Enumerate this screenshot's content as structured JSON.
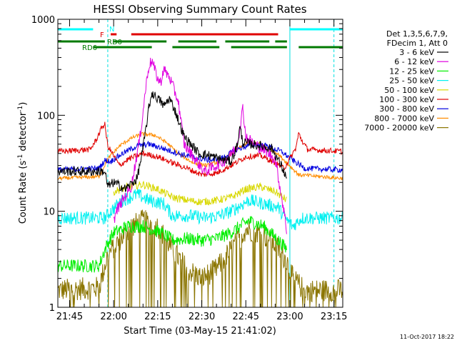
{
  "chart_data": {
    "type": "line",
    "title": "HESSI Observing Summary Count Rates",
    "xlabel": "Start Time (03-May-15 21:41:02)",
    "ylabel_main": "Count Rate (s",
    "ylabel_sup1": "-1",
    "ylabel_mid": " detector",
    "ylabel_sup2": "-1",
    "ylabel_end": ")",
    "y_scale": "log",
    "ylim": [
      1,
      1000
    ],
    "xlim": [
      "21:41",
      "23:18"
    ],
    "x_ticks": [
      "21:45",
      "22:00",
      "22:15",
      "22:30",
      "22:45",
      "23:00",
      "23:15"
    ],
    "y_ticks": [
      "1",
      "10",
      "100",
      "1000"
    ],
    "info_lines": [
      "Det 1,3,5,6,7,9,",
      "FDecim 1, Att 0"
    ],
    "footer_date": "11-Oct-2017 18:22",
    "legend_position": "right",
    "legend": [
      {
        "label": "3 - 6 keV",
        "color": "#000000"
      },
      {
        "label": "6 - 12 keV",
        "color": "#e000e0"
      },
      {
        "label": "12 - 25 keV",
        "color": "#00ee00"
      },
      {
        "label": "25 - 50 keV",
        "color": "#00f0f0"
      },
      {
        "label": "50 - 100 keV",
        "color": "#d8d800"
      },
      {
        "label": "100 - 300 keV",
        "color": "#e00000"
      },
      {
        "label": "300 - 800 keV",
        "color": "#0000e0"
      },
      {
        "label": "800 - 7000 keV",
        "color": "#ff8c00"
      },
      {
        "label": "7000 - 20000 keV",
        "color": "#8b7500"
      }
    ],
    "flags": [
      {
        "label": "N",
        "color": "#00ffff",
        "segments": [
          [
            "21:41",
            "21:53"
          ],
          [
            "23:00",
            "23:18"
          ]
        ]
      },
      {
        "label": "F",
        "color": "#e00000",
        "segments": [
          [
            "21:59",
            "22:01"
          ],
          [
            "22:06",
            "22:56"
          ]
        ]
      },
      {
        "label": "RD0",
        "color": "#007a00",
        "segments": [
          [
            "21:41",
            "21:57"
          ],
          [
            "22:00",
            "22:18"
          ],
          [
            "22:22",
            "22:35"
          ],
          [
            "22:38",
            "22:53"
          ],
          [
            "22:55",
            "22:59"
          ]
        ]
      },
      {
        "label": "RD6",
        "color": "#007a00",
        "segments": [
          [
            "21:53",
            "22:13"
          ],
          [
            "22:20",
            "22:36"
          ],
          [
            "22:40",
            "22:59"
          ],
          [
            "23:03",
            "23:18"
          ]
        ]
      }
    ],
    "vertical_lines": [
      {
        "time": "21:41",
        "style": "solid",
        "color": "#00e0e0"
      },
      {
        "time": "21:58",
        "style": "dashed",
        "color": "#00e0e0"
      },
      {
        "time": "23:00",
        "style": "solid",
        "color": "#00e0e0"
      },
      {
        "time": "23:15",
        "style": "dashed",
        "color": "#00e0e0"
      }
    ],
    "series": [
      {
        "name": "3 - 6 keV",
        "color": "#000000",
        "noise": 0.05,
        "points": [
          [
            "21:41",
            26
          ],
          [
            "21:57",
            26
          ],
          [
            "21:58",
            18
          ],
          [
            "22:00",
            20
          ],
          [
            "22:04",
            17
          ],
          [
            "22:08",
            22
          ],
          [
            "22:10",
            45
          ],
          [
            "22:12",
            120
          ],
          [
            "22:13",
            170
          ],
          [
            "22:16",
            140
          ],
          [
            "22:17",
            125
          ],
          [
            "22:19",
            150
          ],
          [
            "22:21",
            110
          ],
          [
            "22:24",
            60
          ],
          [
            "22:29",
            40
          ],
          [
            "22:33",
            38
          ],
          [
            "22:36",
            35
          ],
          [
            "22:40",
            33
          ],
          [
            "22:42",
            48
          ],
          [
            "22:43",
            75
          ],
          [
            "22:44",
            52
          ],
          [
            "22:47",
            50
          ],
          [
            "22:50",
            48
          ],
          [
            "22:54",
            45
          ],
          [
            "22:57",
            30
          ],
          [
            "22:59",
            22
          ],
          [
            "23:00",
            null
          ]
        ]
      },
      {
        "name": "6 - 12 keV",
        "color": "#e000e0",
        "noise": 0.06,
        "points": [
          [
            "21:41",
            null
          ],
          [
            "21:59",
            null
          ],
          [
            "22:00",
            8
          ],
          [
            "22:01",
            10
          ],
          [
            "22:03",
            13
          ],
          [
            "22:06",
            18
          ],
          [
            "22:09",
            60
          ],
          [
            "22:11",
            200
          ],
          [
            "22:12",
            330
          ],
          [
            "22:13",
            370
          ],
          [
            "22:15",
            240
          ],
          [
            "22:16",
            220
          ],
          [
            "22:17",
            300
          ],
          [
            "22:19",
            250
          ],
          [
            "22:22",
            140
          ],
          [
            "22:24",
            50
          ],
          [
            "22:28",
            34
          ],
          [
            "22:31",
            26
          ],
          [
            "22:35",
            30
          ],
          [
            "22:39",
            36
          ],
          [
            "22:42",
            48
          ],
          [
            "22:44",
            120
          ],
          [
            "22:45",
            60
          ],
          [
            "22:48",
            50
          ],
          [
            "22:52",
            42
          ],
          [
            "22:55",
            35
          ],
          [
            "22:58",
            10
          ],
          [
            "22:59",
            6
          ],
          [
            "23:00",
            null
          ]
        ]
      },
      {
        "name": "12 - 25 keV",
        "color": "#00ee00",
        "noise": 0.07,
        "points": [
          [
            "21:41",
            2.7
          ],
          [
            "21:55",
            2.7
          ],
          [
            "21:57",
            4
          ],
          [
            "22:00",
            6
          ],
          [
            "22:05",
            7
          ],
          [
            "22:10",
            7
          ],
          [
            "22:13",
            6.5
          ],
          [
            "22:16",
            6
          ],
          [
            "22:20",
            5
          ],
          [
            "22:25",
            5.2
          ],
          [
            "22:30",
            5
          ],
          [
            "22:35",
            5.2
          ],
          [
            "22:40",
            6
          ],
          [
            "22:46",
            8
          ],
          [
            "22:51",
            7
          ],
          [
            "22:56",
            5
          ],
          [
            "22:59",
            4
          ],
          [
            "23:00",
            null
          ]
        ]
      },
      {
        "name": "25 - 50 keV",
        "color": "#00f0f0",
        "noise": 0.07,
        "points": [
          [
            "21:41",
            8.5
          ],
          [
            "21:57",
            8.5
          ],
          [
            "21:59",
            10
          ],
          [
            "22:03",
            13
          ],
          [
            "22:08",
            15
          ],
          [
            "22:12",
            13
          ],
          [
            "22:17",
            12
          ],
          [
            "22:20",
            9
          ],
          [
            "22:26",
            9
          ],
          [
            "22:31",
            8.5
          ],
          [
            "22:36",
            9
          ],
          [
            "22:40",
            10
          ],
          [
            "22:46",
            13
          ],
          [
            "22:51",
            12
          ],
          [
            "22:56",
            11
          ],
          [
            "22:59",
            8
          ],
          [
            "23:01",
            7
          ],
          [
            "23:04",
            8.5
          ],
          [
            "23:18",
            8.5
          ]
        ]
      },
      {
        "name": "50 - 100 keV",
        "color": "#d8d800",
        "noise": 0.04,
        "points": [
          [
            "21:41",
            null
          ],
          [
            "21:59",
            null
          ],
          [
            "22:00",
            16
          ],
          [
            "22:05",
            18
          ],
          [
            "22:10",
            19
          ],
          [
            "22:15",
            17
          ],
          [
            "22:20",
            14
          ],
          [
            "22:25",
            13
          ],
          [
            "22:30",
            12.5
          ],
          [
            "22:35",
            13
          ],
          [
            "22:40",
            14
          ],
          [
            "22:45",
            17
          ],
          [
            "22:50",
            18
          ],
          [
            "22:55",
            16
          ],
          [
            "22:59",
            13
          ],
          [
            "23:00",
            null
          ]
        ]
      },
      {
        "name": "100 - 300 keV",
        "color": "#e00000",
        "noise": 0.03,
        "points": [
          [
            "21:41",
            42
          ],
          [
            "21:52",
            44
          ],
          [
            "21:54",
            55
          ],
          [
            "21:56",
            75
          ],
          [
            "21:57",
            80
          ],
          [
            "21:58",
            48
          ],
          [
            "22:02",
            30
          ],
          [
            "22:05",
            35
          ],
          [
            "22:10",
            40
          ],
          [
            "22:15",
            37
          ],
          [
            "22:20",
            32
          ],
          [
            "22:25",
            28
          ],
          [
            "22:30",
            24
          ],
          [
            "22:35",
            25
          ],
          [
            "22:40",
            30
          ],
          [
            "22:45",
            37
          ],
          [
            "22:50",
            38
          ],
          [
            "22:55",
            32
          ],
          [
            "22:58",
            28
          ],
          [
            "23:02",
            45
          ],
          [
            "23:03",
            65
          ],
          [
            "23:04",
            55
          ],
          [
            "23:06",
            44
          ],
          [
            "23:18",
            42
          ]
        ]
      },
      {
        "name": "300 - 800 keV",
        "color": "#0000e0",
        "noise": 0.03,
        "points": [
          [
            "21:41",
            27
          ],
          [
            "21:55",
            28
          ],
          [
            "21:57",
            34
          ],
          [
            "21:59",
            33
          ],
          [
            "22:03",
            40
          ],
          [
            "22:08",
            48
          ],
          [
            "22:12",
            50
          ],
          [
            "22:17",
            45
          ],
          [
            "22:22",
            40
          ],
          [
            "22:28",
            36
          ],
          [
            "22:33",
            34
          ],
          [
            "22:37",
            36
          ],
          [
            "22:42",
            44
          ],
          [
            "22:47",
            50
          ],
          [
            "22:52",
            48
          ],
          [
            "22:57",
            42
          ],
          [
            "23:01",
            34
          ],
          [
            "23:05",
            28
          ],
          [
            "23:18",
            27
          ]
        ]
      },
      {
        "name": "800 - 7000 keV",
        "color": "#ff8c00",
        "noise": 0.02,
        "points": [
          [
            "21:41",
            22
          ],
          [
            "21:55",
            23
          ],
          [
            "21:58",
            35
          ],
          [
            "22:02",
            48
          ],
          [
            "22:06",
            58
          ],
          [
            "22:10",
            64
          ],
          [
            "22:14",
            62
          ],
          [
            "22:18",
            52
          ],
          [
            "22:22",
            40
          ],
          [
            "22:27",
            32
          ],
          [
            "22:32",
            30
          ],
          [
            "22:37",
            34
          ],
          [
            "22:42",
            44
          ],
          [
            "22:46",
            52
          ],
          [
            "22:50",
            50
          ],
          [
            "22:55",
            42
          ],
          [
            "22:59",
            32
          ],
          [
            "23:03",
            24
          ],
          [
            "23:18",
            22
          ]
        ]
      },
      {
        "name": "7000 - 20000 keV",
        "color": "#8b7500",
        "noise": 0.12,
        "points": [
          [
            "21:41",
            1.5
          ],
          [
            "21:55",
            1.6
          ],
          [
            "21:58",
            3.5
          ],
          [
            "22:02",
            5
          ],
          [
            "22:06",
            7
          ],
          [
            "22:10",
            8
          ],
          [
            "22:15",
            7
          ],
          [
            "22:20",
            4
          ],
          [
            "22:25",
            2.5
          ],
          [
            "22:30",
            2
          ],
          [
            "22:35",
            2.5
          ],
          [
            "22:40",
            4
          ],
          [
            "22:45",
            6.5
          ],
          [
            "22:50",
            6
          ],
          [
            "22:55",
            4.5
          ],
          [
            "22:59",
            3
          ],
          [
            "23:01",
            2
          ],
          [
            "23:05",
            1.5
          ],
          [
            "23:18",
            1.5
          ]
        ]
      }
    ]
  }
}
